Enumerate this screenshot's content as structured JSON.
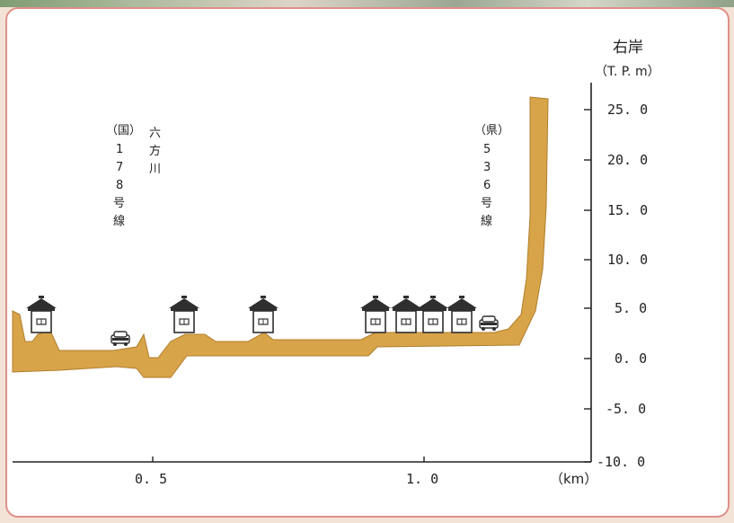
{
  "axis": {
    "title_line1": "右岸",
    "title_line2": "（T. P. m）",
    "y_ticks": [
      {
        "value": 25.0,
        "label": "25. 0"
      },
      {
        "value": 20.0,
        "label": "20. 0"
      },
      {
        "value": 15.0,
        "label": "15. 0"
      },
      {
        "value": 10.0,
        "label": "10. 0"
      },
      {
        "value": 5.0,
        "label": "5. 0"
      },
      {
        "value": 0.0,
        "label": "0. 0"
      },
      {
        "value": -5.0,
        "label": "-5. 0"
      },
      {
        "value": -10.0,
        "label": "-10. 0"
      }
    ],
    "x_ticks": [
      {
        "value": 0.5,
        "label": "0. 5"
      },
      {
        "value": 1.0,
        "label": "1. 0"
      }
    ],
    "x_unit": "（km）"
  },
  "labels": {
    "route178": [
      "（国）",
      "1",
      "7",
      "8",
      "号",
      "線"
    ],
    "river": [
      "六",
      "方",
      "川"
    ],
    "route536": [
      "（県）",
      "5",
      "3",
      "6",
      "号",
      "線"
    ]
  },
  "colors": {
    "ground": "#d8a44a",
    "ground_outline": "#b07e2c",
    "border": "#e08f88",
    "axis": "#222222"
  },
  "icons": {
    "house": "house-icon",
    "car": "car-icon"
  }
}
